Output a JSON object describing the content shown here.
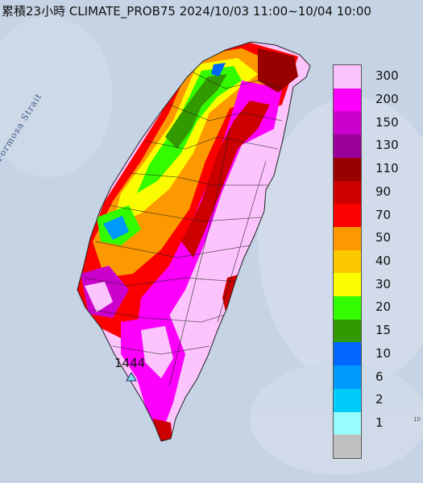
{
  "title": "累積23小時 CLIMATE_PROB75 2024/10/03 11:00~10/04 10:00",
  "strait_label": "Formosa Strait",
  "max_label": "1444",
  "edge_mark": "10",
  "legend": [
    {
      "label": "300",
      "color": "#fcc4fc"
    },
    {
      "label": "200",
      "color": "#fc00fc"
    },
    {
      "label": "150",
      "color": "#cc00cc"
    },
    {
      "label": "130",
      "color": "#990099"
    },
    {
      "label": "110",
      "color": "#990000"
    },
    {
      "label": "90",
      "color": "#cc0000"
    },
    {
      "label": "70",
      "color": "#fc0000"
    },
    {
      "label": "50",
      "color": "#fc9900"
    },
    {
      "label": "40",
      "color": "#fcc800"
    },
    {
      "label": "30",
      "color": "#fcfc00"
    },
    {
      "label": "20",
      "color": "#33fc00"
    },
    {
      "label": "15",
      "color": "#339900"
    },
    {
      "label": "10",
      "color": "#0066fc"
    },
    {
      "label": "6",
      "color": "#0099fc"
    },
    {
      "label": "2",
      "color": "#00ccfc"
    },
    {
      "label": "1",
      "color": "#99fcfc"
    },
    {
      "label": "",
      "color": "#c0c0c0"
    }
  ]
}
